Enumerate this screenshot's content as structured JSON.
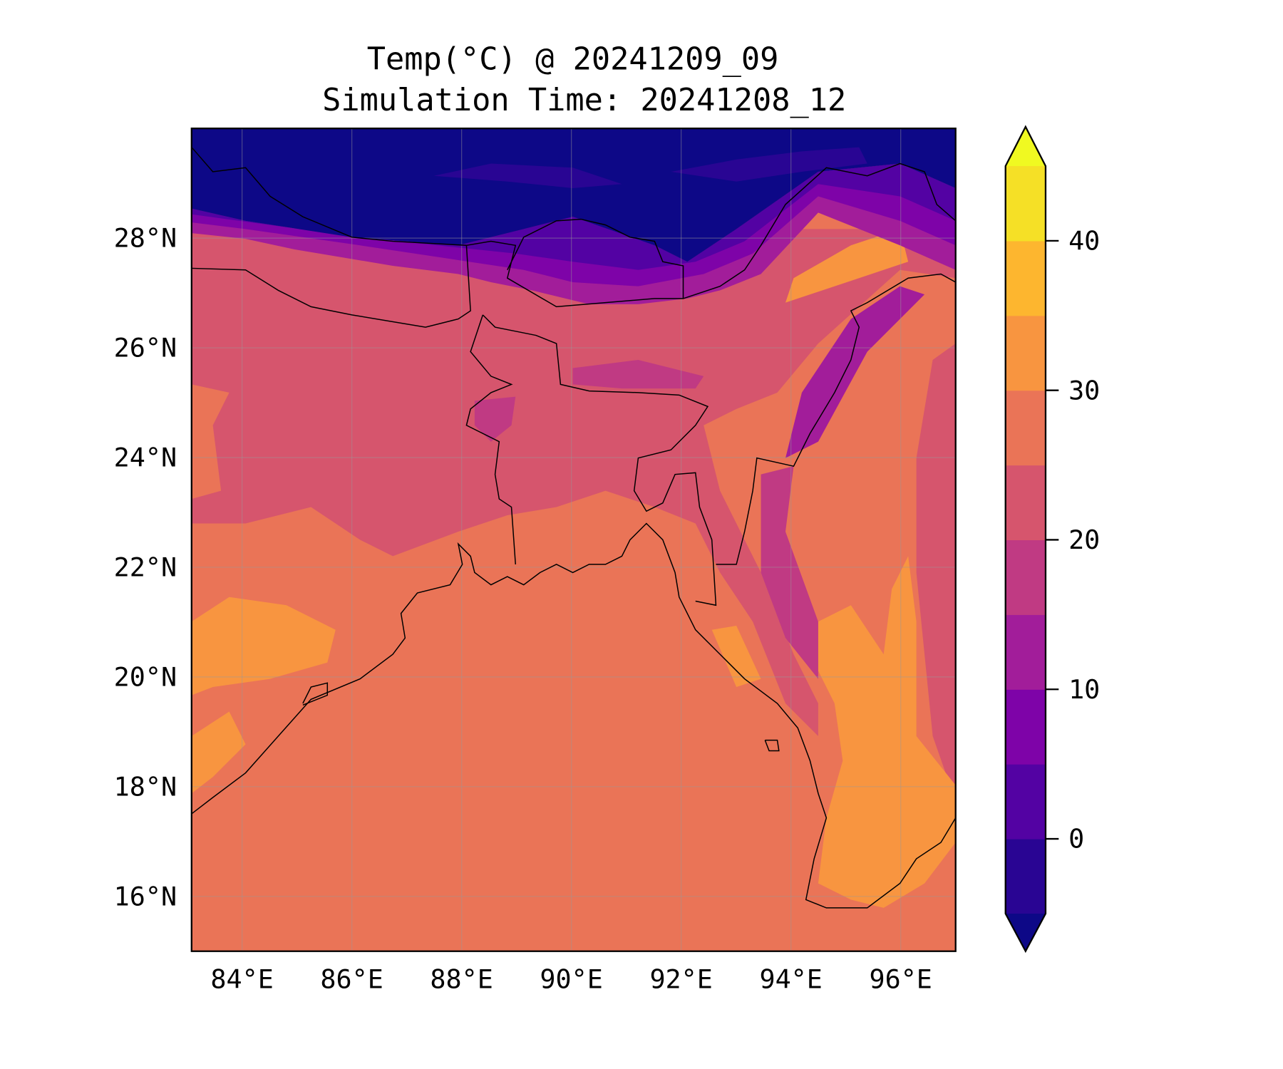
{
  "title_line1": "Temp(°C) @ 20241209_09",
  "title_line2": "Simulation Time: 20241208_12",
  "map": {
    "lon_range": [
      83.08,
      97.0
    ],
    "lat_range": [
      15.0,
      30.0
    ],
    "lon_ticks": [
      84,
      86,
      88,
      90,
      92,
      94,
      96
    ],
    "lon_tick_labels": [
      "84°E",
      "86°E",
      "88°E",
      "90°E",
      "92°E",
      "94°E",
      "96°E"
    ],
    "lat_ticks": [
      16,
      18,
      20,
      22,
      24,
      26,
      28
    ],
    "lat_tick_labels": [
      "16°N",
      "18°N",
      "20°N",
      "22°N",
      "24°N",
      "26°N",
      "28°N"
    ],
    "gridlines": true
  },
  "colorbar": {
    "levels": [
      -5,
      0,
      5,
      10,
      15,
      20,
      25,
      30,
      35,
      40,
      45
    ],
    "tick_values": [
      0,
      10,
      20,
      30,
      40
    ],
    "tick_labels": [
      "0",
      "10",
      "20",
      "30",
      "40"
    ],
    "extend": "both",
    "colors": [
      "#290593",
      "#5302a3",
      "#7e03a8",
      "#a21d9a",
      "#c03a83",
      "#d6556d",
      "#ea7457",
      "#f89540",
      "#fdb62f",
      "#f5e026"
    ],
    "under_color": "#0d0887",
    "over_color": "#f0f921"
  }
}
